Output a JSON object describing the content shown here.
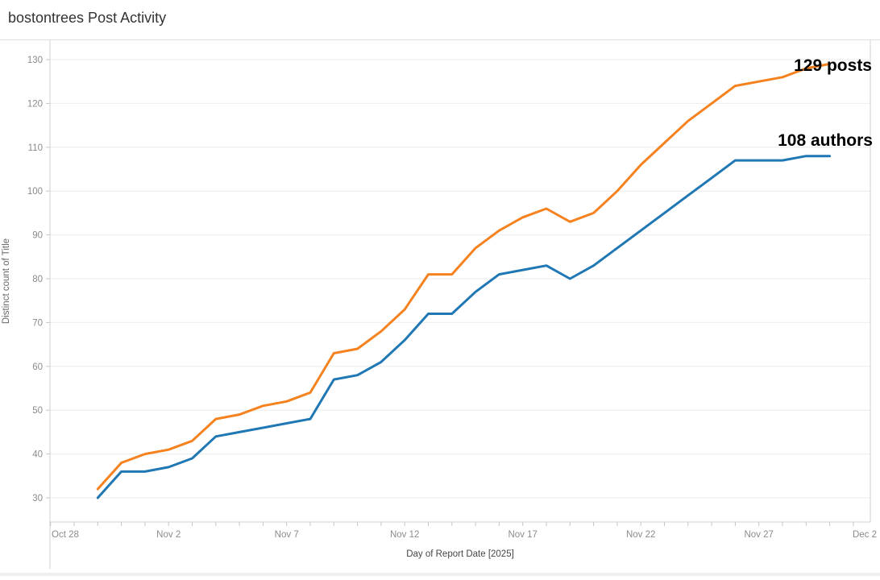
{
  "header": {
    "title": "bostontrees Post Activity"
  },
  "chart_data": {
    "type": "line",
    "title": "bostontrees Post Activity",
    "xlabel": "Day of Report Date [2025]",
    "ylabel": "Distinct count of Title",
    "ylim": [
      30,
      130
    ],
    "grid": "horizontal",
    "legend_position": "none (direct line labels at right)",
    "y_ticks": [
      30,
      40,
      50,
      60,
      70,
      80,
      90,
      100,
      110,
      120,
      130
    ],
    "x_ticks": [
      {
        "day": 0,
        "label": "Oct 28"
      },
      {
        "day": 5,
        "label": "Nov 2"
      },
      {
        "day": 10,
        "label": "Nov 7"
      },
      {
        "day": 15,
        "label": "Nov 12"
      },
      {
        "day": 20,
        "label": "Nov 17"
      },
      {
        "day": 25,
        "label": "Nov 22"
      },
      {
        "day": 30,
        "label": "Nov 27"
      },
      {
        "day": 35,
        "label": "Dec 2"
      }
    ],
    "x_minor_tick_every_days": 1,
    "dates": [
      "Oct 30",
      "Oct 31",
      "Nov 1",
      "Nov 2",
      "Nov 3",
      "Nov 4",
      "Nov 5",
      "Nov 6",
      "Nov 7",
      "Nov 8",
      "Nov 9",
      "Nov 10",
      "Nov 11",
      "Nov 12",
      "Nov 13",
      "Nov 14",
      "Nov 15",
      "Nov 16",
      "Nov 17",
      "Nov 18",
      "Nov 19",
      "Nov 20",
      "Nov 21",
      "Nov 22",
      "Nov 23",
      "Nov 24",
      "Nov 25",
      "Nov 26",
      "Nov 27",
      "Nov 28",
      "Nov 29",
      "Nov 30"
    ],
    "series": [
      {
        "name": "posts",
        "color": "#f5821f",
        "annotation": "129 posts",
        "final_value": 129,
        "values": [
          32,
          38,
          40,
          41,
          43,
          48,
          49,
          51,
          52,
          54,
          63,
          64,
          68,
          73,
          81,
          81,
          87,
          91,
          94,
          96,
          93,
          95,
          100,
          106,
          111,
          116,
          120,
          124,
          125,
          126,
          128,
          129
        ]
      },
      {
        "name": "authors",
        "color": "#1f77b4",
        "annotation": "108 authors",
        "final_value": 108,
        "values": [
          30,
          36,
          36,
          37,
          39,
          44,
          45,
          46,
          47,
          48,
          57,
          58,
          61,
          66,
          72,
          72,
          77,
          81,
          82,
          83,
          80,
          83,
          87,
          91,
          95,
          99,
          103,
          107,
          107,
          107,
          108,
          108
        ]
      }
    ],
    "colors": {
      "gridline": "#ececec",
      "axis_frame": "#d0d0d0",
      "tick": "#c5c5c5",
      "tick_label": "#8b8b8b",
      "axis_title": "#464646",
      "title": "#333333",
      "annotation_text": "#000000"
    }
  }
}
